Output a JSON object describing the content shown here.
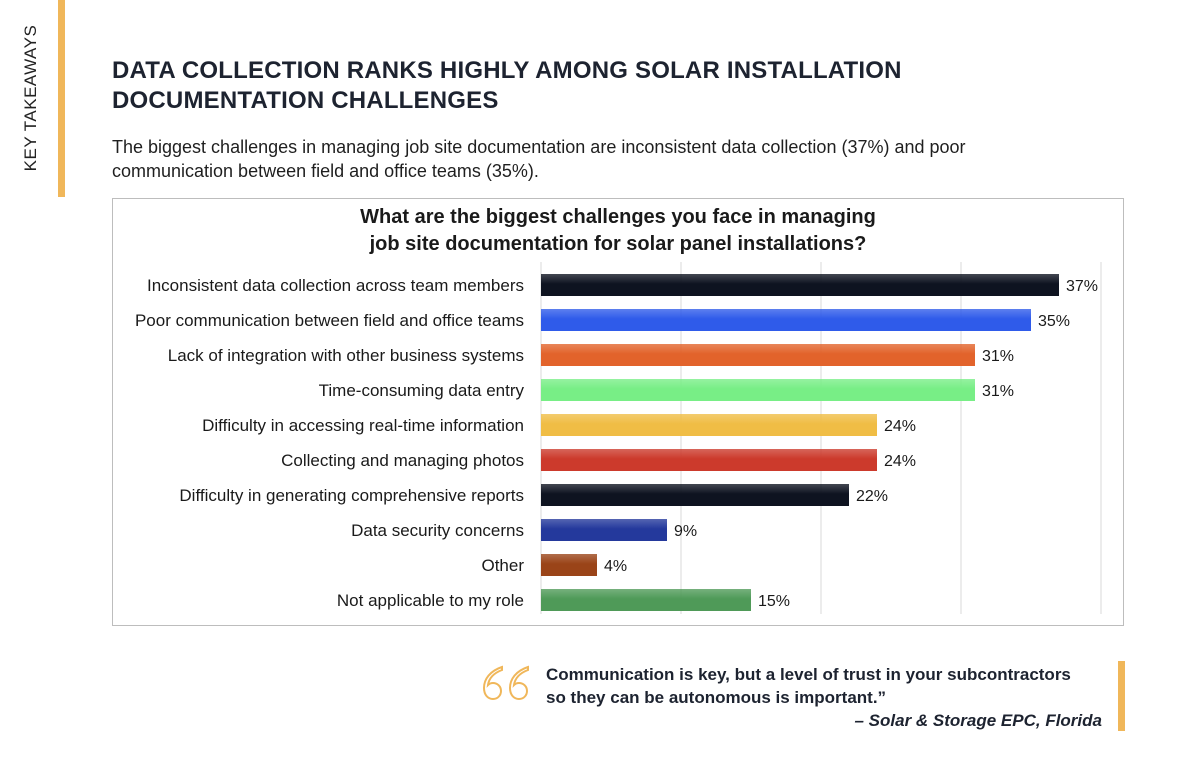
{
  "side_label": "KEY TAKEAWAYS",
  "headline_line1": "DATA COLLECTION RANKS HIGHLY AMONG SOLAR INSTALLATION",
  "headline_line2": "DOCUMENTATION CHALLENGES",
  "intro_line1": "The biggest challenges in managing job site documentation are inconsistent data collection (37%) and poor",
  "intro_line2": "communication between field and office teams (35%).",
  "quote": {
    "line1": "Communication is key, but a level of trust in your subcontractors",
    "line2": "so they can be autonomous is important.”",
    "attribution": "– Solar & Storage EPC, Florida"
  },
  "accent_color": "#f0b75a",
  "icons": {
    "quote": "quote-marks-icon"
  },
  "chart_data": {
    "type": "bar",
    "orientation": "horizontal",
    "title_line1": "What are the biggest challenges you face in managing",
    "title_line2": "job site documentation for solar panel installations?",
    "categories": [
      "Inconsistent data collection across team members",
      "Poor communication between field and office teams",
      "Lack of integration with other business systems",
      "Time-consuming data entry",
      "Difficulty in accessing real-time information",
      "Collecting and managing photos",
      "Difficulty in generating comprehensive reports",
      "Data security concerns",
      "Other",
      "Not applicable to my role"
    ],
    "values": [
      37,
      35,
      31,
      31,
      24,
      24,
      22,
      9,
      4,
      15
    ],
    "value_labels": [
      "37%",
      "35%",
      "31%",
      "31%",
      "24%",
      "24%",
      "22%",
      "9%",
      "4%",
      "15%"
    ],
    "colors": [
      "#0e1320",
      "#2f5bea",
      "#e2632b",
      "#78ee86",
      "#f0bd45",
      "#cc3a2c",
      "#0e1320",
      "#24399c",
      "#9a4418",
      "#4f9a58"
    ],
    "xlim": [
      0,
      40
    ],
    "grid": "vertical",
    "legend": "none"
  }
}
